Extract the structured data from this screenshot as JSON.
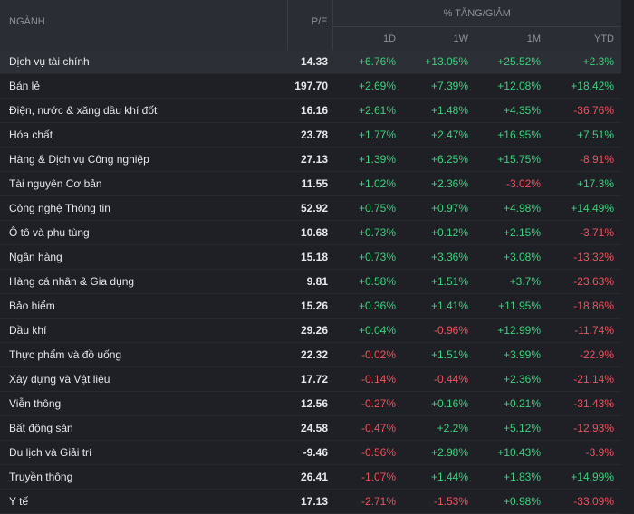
{
  "header": {
    "sector": "NGÀNH",
    "pe": "P/E",
    "change": "% TĂNG/GIẢM",
    "columns": [
      "1D",
      "1W",
      "1M",
      "YTD"
    ]
  },
  "table": {
    "rows": [
      [
        "Dịch vụ tài chính",
        "14.33",
        "+6.76%",
        "+13.05%",
        "+25.52%",
        "+2.3%"
      ],
      [
        "Bán lẻ",
        "197.70",
        "+2.69%",
        "+7.39%",
        "+12.08%",
        "+18.42%"
      ],
      [
        "Điện, nước & xăng dầu khí đốt",
        "16.16",
        "+2.61%",
        "+1.48%",
        "+4.35%",
        "-36.76%"
      ],
      [
        "Hóa chất",
        "23.78",
        "+1.77%",
        "+2.47%",
        "+16.95%",
        "+7.51%"
      ],
      [
        "Hàng & Dịch vụ Công nghiệp",
        "27.13",
        "+1.39%",
        "+6.25%",
        "+15.75%",
        "-8.91%"
      ],
      [
        "Tài nguyên Cơ bản",
        "11.55",
        "+1.02%",
        "+2.36%",
        "-3.02%",
        "+17.3%"
      ],
      [
        "Công nghệ Thông tin",
        "52.92",
        "+0.75%",
        "+0.97%",
        "+4.98%",
        "+14.49%"
      ],
      [
        "Ô tô và phụ tùng",
        "10.68",
        "+0.73%",
        "+0.12%",
        "+2.15%",
        "-3.71%"
      ],
      [
        "Ngân hàng",
        "15.18",
        "+0.73%",
        "+3.36%",
        "+3.08%",
        "-13.32%"
      ],
      [
        "Hàng cá nhân & Gia dụng",
        "9.81",
        "+0.58%",
        "+1.51%",
        "+3.7%",
        "-23.63%"
      ],
      [
        "Bảo hiểm",
        "15.26",
        "+0.36%",
        "+1.41%",
        "+11.95%",
        "-18.86%"
      ],
      [
        "Dầu khí",
        "29.26",
        "+0.04%",
        "-0.96%",
        "+12.99%",
        "-11.74%"
      ],
      [
        "Thực phẩm và đồ uống",
        "22.32",
        "-0.02%",
        "+1.51%",
        "+3.99%",
        "-22.9%"
      ],
      [
        "Xây dựng và Vật liệu",
        "17.72",
        "-0.14%",
        "-0.44%",
        "+2.36%",
        "-21.14%"
      ],
      [
        "Viễn thông",
        "12.56",
        "-0.27%",
        "+0.16%",
        "+0.21%",
        "-31.43%"
      ],
      [
        "Bất động sản",
        "24.58",
        "-0.47%",
        "+2.2%",
        "+5.12%",
        "-12.93%"
      ],
      [
        "Du lịch và Giải trí",
        "-9.46",
        "-0.56%",
        "+2.98%",
        "+10.43%",
        "-3.9%"
      ],
      [
        "Truyền thông",
        "26.41",
        "-1.07%",
        "+1.44%",
        "+1.83%",
        "+14.99%"
      ],
      [
        "Y tế",
        "17.13",
        "-2.71%",
        "-1.53%",
        "+0.98%",
        "-33.09%"
      ]
    ]
  }
}
